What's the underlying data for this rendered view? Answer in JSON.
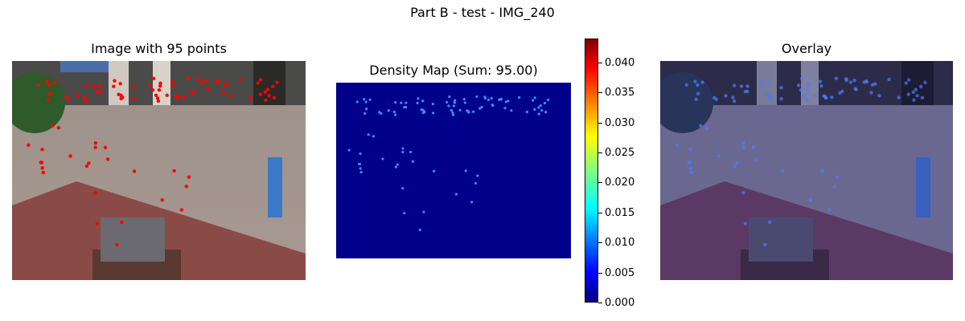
{
  "figure": {
    "suptitle": "Part B - test - IMG_240"
  },
  "panels": {
    "left_title": "Image with 95 points",
    "middle_title": "Density Map (Sum: 95.00)",
    "right_title": "Overlay"
  },
  "colorbar": {
    "colormap": "jet",
    "ticks": [
      "0.000",
      "0.005",
      "0.010",
      "0.015",
      "0.020",
      "0.025",
      "0.030",
      "0.035",
      "0.040"
    ],
    "tick_values": [
      0,
      0.005,
      0.01,
      0.015,
      0.02,
      0.025,
      0.03,
      0.035,
      0.04
    ],
    "vmin": 0,
    "vmax": 0.044
  },
  "chart_data": [
    {
      "type": "image",
      "title": "Image with 95 points",
      "annotation_count": 95,
      "marker_color": "#ff0000"
    },
    {
      "type": "heatmap",
      "title": "Density Map (Sum: 95.00)",
      "sum": 95.0,
      "colormap": "jet",
      "background_color": "#00008b"
    },
    {
      "type": "image",
      "title": "Overlay",
      "overlay_colormap": "jet"
    }
  ],
  "colors": {
    "background": "#ffffff",
    "density_background": "#00008b",
    "marker": "#ff0000"
  }
}
